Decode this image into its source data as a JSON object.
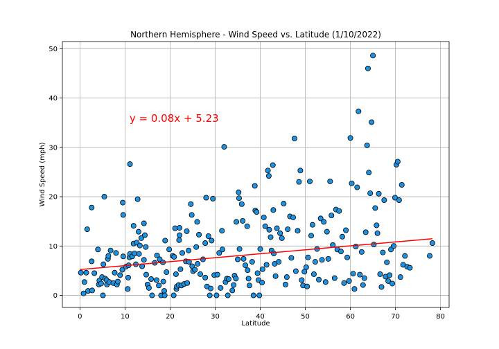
{
  "chart_data": {
    "type": "scatter",
    "title": "Northern Hemisphere - Wind Speed vs. Latitude (1/10/2022)",
    "xlabel": "Latitude",
    "ylabel": "Wind Speed (mph)",
    "xlim": [
      -3.9,
      81.9
    ],
    "ylim": [
      -2.45,
      51.45
    ],
    "xticks": [
      0,
      10,
      20,
      30,
      40,
      50,
      60,
      70,
      80
    ],
    "yticks": [
      0,
      10,
      20,
      30,
      40,
      50
    ],
    "grid": true,
    "marker_color": "#1e90e0",
    "marker_edge_color": "#000000",
    "regression": {
      "equation": "y = 0.08x + 5.23",
      "slope": 0.08,
      "intercept": 5.23,
      "x_range": [
        0.0,
        78.2
      ],
      "line_color": "#ff0000",
      "label_x": 11.0,
      "label_y": 35.2
    },
    "series": [
      {
        "points": [
          [
            0.2,
            4.6
          ],
          [
            0.8,
            0.4
          ],
          [
            1.0,
            2.7
          ],
          [
            1.4,
            4.6
          ],
          [
            1.6,
            13.4
          ],
          [
            1.8,
            0.9
          ],
          [
            2.6,
            17.8
          ],
          [
            2.6,
            6.9
          ],
          [
            2.7,
            1.0
          ],
          [
            3.2,
            4.5
          ],
          [
            4.0,
            9.3
          ],
          [
            4.2,
            2.2
          ],
          [
            4.3,
            3.0
          ],
          [
            4.7,
            2.4
          ],
          [
            4.9,
            3.7
          ],
          [
            5.1,
            0.0
          ],
          [
            5.2,
            6.3
          ],
          [
            5.4,
            20.0
          ],
          [
            5.6,
            3.4
          ],
          [
            5.9,
            3.1
          ],
          [
            6.0,
            2.2
          ],
          [
            6.2,
            7.4
          ],
          [
            6.3,
            8.0
          ],
          [
            6.5,
            2.7
          ],
          [
            6.8,
            9.1
          ],
          [
            7.4,
            2.5
          ],
          [
            7.7,
            4.6
          ],
          [
            8.0,
            8.6
          ],
          [
            8.2,
            2.2
          ],
          [
            8.4,
            2.8
          ],
          [
            8.9,
            4.1
          ],
          [
            9.4,
            5.2
          ],
          [
            9.5,
            18.8
          ],
          [
            9.6,
            16.3
          ],
          [
            9.6,
            7.9
          ],
          [
            10.2,
            5.8
          ],
          [
            10.6,
            1.3
          ],
          [
            10.7,
            3.6
          ],
          [
            10.8,
            6.1
          ],
          [
            11.0,
            7.7
          ],
          [
            11.1,
            26.6
          ],
          [
            11.1,
            8.4
          ],
          [
            11.6,
            7.9
          ],
          [
            11.9,
            14.1
          ],
          [
            11.9,
            10.5
          ],
          [
            12.1,
            8.5
          ],
          [
            12.4,
            6.3
          ],
          [
            12.6,
            10.7
          ],
          [
            12.8,
            19.5
          ],
          [
            13.0,
            12.9
          ],
          [
            13.1,
            8.4
          ],
          [
            13.3,
            10.1
          ],
          [
            13.6,
            11.6
          ],
          [
            13.8,
            5.9
          ],
          [
            14.2,
            7.2
          ],
          [
            14.2,
            14.6
          ],
          [
            14.4,
            12.2
          ],
          [
            14.6,
            9.8
          ],
          [
            14.7,
            4.2
          ],
          [
            15.0,
            2.2
          ],
          [
            15.3,
            1.5
          ],
          [
            15.8,
            3.3
          ],
          [
            16.0,
            0.0
          ],
          [
            16.6,
            6.6
          ],
          [
            17.0,
            3.1
          ],
          [
            17.1,
            8.1
          ],
          [
            17.5,
            2.0
          ],
          [
            17.7,
            7.3
          ],
          [
            18.0,
            0.0
          ],
          [
            18.4,
            6.7
          ],
          [
            18.5,
            2.8
          ],
          [
            18.7,
            0.9
          ],
          [
            18.8,
            0.0
          ],
          [
            18.9,
            11.1
          ],
          [
            19.2,
            4.7
          ],
          [
            19.8,
            9.3
          ],
          [
            20.6,
            8.0
          ],
          [
            20.8,
            0.0
          ],
          [
            20.9,
            7.8
          ],
          [
            21.1,
            13.6
          ],
          [
            21.3,
            4.3
          ],
          [
            21.4,
            1.3
          ],
          [
            21.5,
            1.8
          ],
          [
            21.9,
            2.1
          ],
          [
            22.0,
            11.2
          ],
          [
            22.1,
            12.2
          ],
          [
            22.1,
            13.7
          ],
          [
            22.3,
            5.3
          ],
          [
            22.5,
            2.0
          ],
          [
            22.7,
            8.6
          ],
          [
            23.1,
            2.3
          ],
          [
            23.5,
            6.9
          ],
          [
            23.7,
            13.0
          ],
          [
            23.8,
            2.5
          ],
          [
            24.1,
            9.1
          ],
          [
            24.2,
            6.8
          ],
          [
            24.6,
            18.5
          ],
          [
            24.8,
            16.3
          ],
          [
            24.9,
            5.9
          ],
          [
            25.1,
            4.9
          ],
          [
            25.5,
            5.2
          ],
          [
            25.8,
            9.8
          ],
          [
            26.0,
            14.9
          ],
          [
            26.1,
            6.4
          ],
          [
            26.4,
            12.3
          ],
          [
            26.7,
            4.3
          ],
          [
            27.3,
            7.3
          ],
          [
            27.8,
            10.6
          ],
          [
            27.8,
            3.6
          ],
          [
            28.0,
            19.8
          ],
          [
            28.2,
            1.8
          ],
          [
            28.5,
            12.0
          ],
          [
            28.8,
            0.0
          ],
          [
            29.0,
            1.4
          ],
          [
            29.2,
            11.1
          ],
          [
            29.5,
            19.6
          ],
          [
            29.8,
            4.1
          ],
          [
            30.3,
            0.0
          ],
          [
            30.5,
            4.2
          ],
          [
            30.9,
            8.6
          ],
          [
            31.2,
            1.5
          ],
          [
            31.5,
            13.1
          ],
          [
            31.6,
            9.3
          ],
          [
            32.0,
            30.1
          ],
          [
            32.3,
            2.7
          ],
          [
            32.6,
            3.4
          ],
          [
            32.8,
            0.0
          ],
          [
            33.0,
            3.3
          ],
          [
            33.8,
            1.0
          ],
          [
            34.1,
            2.1
          ],
          [
            34.3,
            4.0
          ],
          [
            34.6,
            3.4
          ],
          [
            34.7,
            14.9
          ],
          [
            35.0,
            7.3
          ],
          [
            35.2,
            20.9
          ],
          [
            35.3,
            19.7
          ],
          [
            35.4,
            9.4
          ],
          [
            35.9,
            18.5
          ],
          [
            36.1,
            15.1
          ],
          [
            36.3,
            7.4
          ],
          [
            36.7,
            6.1
          ],
          [
            37.1,
            14.0
          ],
          [
            37.2,
            5.1
          ],
          [
            37.4,
            3.4
          ],
          [
            37.6,
            2.0
          ],
          [
            38.2,
            6.8
          ],
          [
            38.5,
            0.0
          ],
          [
            38.8,
            22.2
          ],
          [
            38.9,
            17.2
          ],
          [
            39.2,
            16.9
          ],
          [
            39.4,
            4.5
          ],
          [
            39.6,
            3.1
          ],
          [
            39.8,
            0.0
          ],
          [
            40.0,
            9.4
          ],
          [
            40.4,
            2.6
          ],
          [
            40.5,
            5.3
          ],
          [
            40.8,
            15.8
          ],
          [
            41.1,
            14.0
          ],
          [
            41.4,
            6.2
          ],
          [
            41.7,
            25.3
          ],
          [
            41.9,
            24.2
          ],
          [
            42.0,
            13.3
          ],
          [
            42.3,
            11.8
          ],
          [
            42.5,
            9.1
          ],
          [
            42.8,
            26.4
          ],
          [
            42.9,
            17.3
          ],
          [
            43.0,
            8.5
          ],
          [
            43.2,
            6.4
          ],
          [
            43.4,
            3.9
          ],
          [
            43.7,
            13.6
          ],
          [
            44.1,
            6.8
          ],
          [
            44.4,
            12.6
          ],
          [
            44.8,
            11.6
          ],
          [
            45.2,
            18.6
          ],
          [
            45.6,
            2.2
          ],
          [
            45.9,
            3.7
          ],
          [
            46.1,
            13.4
          ],
          [
            46.6,
            16.0
          ],
          [
            46.9,
            7.6
          ],
          [
            47.3,
            15.8
          ],
          [
            47.6,
            31.8
          ],
          [
            47.9,
            4.9
          ],
          [
            48.3,
            13.1
          ],
          [
            48.6,
            23.0
          ],
          [
            48.9,
            25.3
          ],
          [
            49.2,
            3.1
          ],
          [
            49.5,
            2.0
          ],
          [
            49.8,
            4.8
          ],
          [
            50.2,
            5.7
          ],
          [
            50.4,
            1.8
          ],
          [
            50.6,
            7.7
          ],
          [
            51.0,
            23.1
          ],
          [
            51.3,
            12.1
          ],
          [
            51.6,
            14.3
          ],
          [
            51.9,
            4.3
          ],
          [
            52.2,
            6.8
          ],
          [
            52.6,
            9.4
          ],
          [
            53.0,
            3.2
          ],
          [
            53.4,
            15.6
          ],
          [
            53.7,
            7.2
          ],
          [
            54.1,
            14.9
          ],
          [
            54.5,
            2.7
          ],
          [
            54.8,
            12.9
          ],
          [
            55.1,
            7.4
          ],
          [
            55.5,
            23.1
          ],
          [
            55.8,
            16.2
          ],
          [
            56.1,
            10.2
          ],
          [
            56.5,
            3.5
          ],
          [
            56.8,
            17.4
          ],
          [
            57.1,
            9.3
          ],
          [
            57.5,
            17.1
          ],
          [
            57.9,
            8.9
          ],
          [
            58.2,
            11.9
          ],
          [
            58.6,
            2.5
          ],
          [
            59.0,
            13.2
          ],
          [
            59.3,
            7.7
          ],
          [
            59.7,
            2.9
          ],
          [
            60.0,
            31.9
          ],
          [
            60.3,
            22.7
          ],
          [
            60.6,
            4.4
          ],
          [
            60.9,
            1.3
          ],
          [
            61.2,
            9.9
          ],
          [
            61.5,
            21.9
          ],
          [
            61.8,
            37.3
          ],
          [
            62.1,
            4.2
          ],
          [
            62.5,
            8.8
          ],
          [
            62.8,
            2.1
          ],
          [
            63.1,
            3.5
          ],
          [
            63.4,
            12.8
          ],
          [
            63.7,
            30.4
          ],
          [
            63.9,
            46.0
          ],
          [
            64.1,
            24.9
          ],
          [
            64.4,
            20.7
          ],
          [
            64.7,
            35.1
          ],
          [
            65.0,
            48.6
          ],
          [
            65.2,
            10.3
          ],
          [
            65.5,
            17.7
          ],
          [
            65.8,
            14.2
          ],
          [
            66.0,
            12.6
          ],
          [
            66.3,
            20.6
          ],
          [
            66.6,
            4.3
          ],
          [
            66.9,
            1.7
          ],
          [
            67.2,
            8.7
          ],
          [
            67.5,
            19.3
          ],
          [
            67.8,
            3.8
          ],
          [
            68.1,
            6.7
          ],
          [
            68.4,
            2.9
          ],
          [
            68.7,
            4.1
          ],
          [
            69.0,
            9.3
          ],
          [
            69.3,
            2.4
          ],
          [
            69.6,
            10.0
          ],
          [
            69.9,
            19.8
          ],
          [
            70.2,
            26.5
          ],
          [
            70.5,
            27.1
          ],
          [
            70.8,
            19.3
          ],
          [
            71.1,
            3.7
          ],
          [
            71.4,
            22.4
          ],
          [
            71.7,
            6.2
          ],
          [
            72.1,
            8.0
          ],
          [
            72.6,
            5.8
          ],
          [
            73.2,
            5.6
          ],
          [
            77.6,
            8.0
          ],
          [
            78.2,
            10.6
          ]
        ]
      }
    ]
  }
}
